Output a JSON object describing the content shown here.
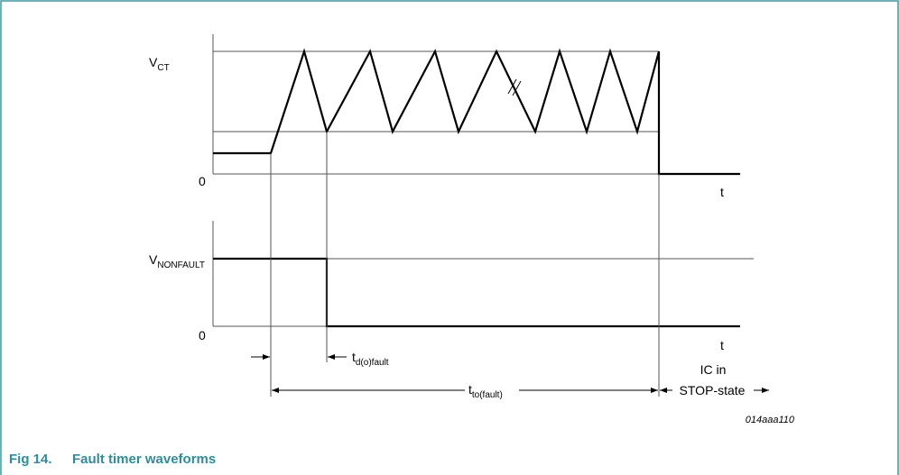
{
  "vct": {
    "symbol": "V",
    "subscript": "CT"
  },
  "upper_zero": "0",
  "upper_t": "t",
  "vnonfault": {
    "symbol": "V",
    "subscript": "NONFAULT"
  },
  "lower_zero": "0",
  "lower_t": "t",
  "td": {
    "symbol": "t",
    "subscript": "d(o)fault"
  },
  "tto": {
    "symbol": "t",
    "subscript": "to(fault)"
  },
  "stop_state": [
    "IC in",
    "STOP-state"
  ],
  "figure_code": "014aaa110",
  "caption": {
    "number": "Fig 14.",
    "title": "Fault timer waveforms"
  }
}
